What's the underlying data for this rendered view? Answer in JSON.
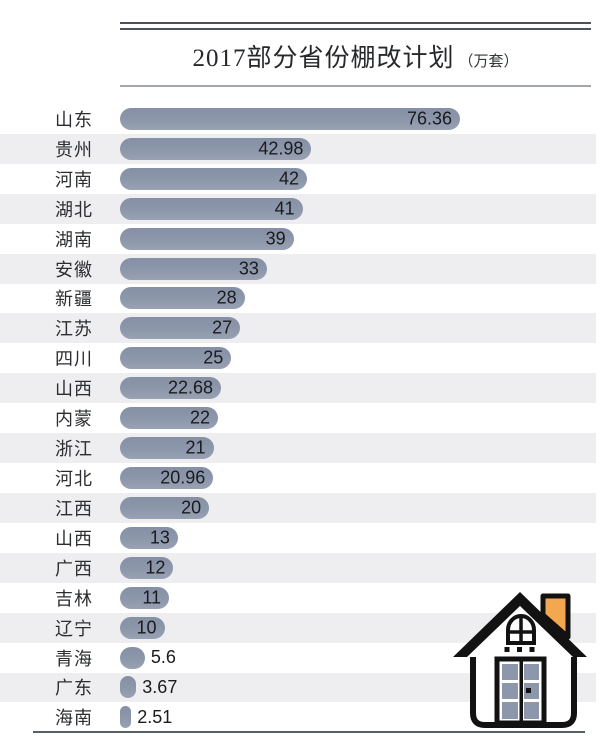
{
  "header": {
    "title": "2017部分省份棚改计划",
    "unit": "（万套）"
  },
  "chart_data": {
    "type": "bar",
    "orientation": "horizontal",
    "title": "2017部分省份棚改计划（万套）",
    "xlabel": "",
    "ylabel": "",
    "xlim": [
      0,
      76.36
    ],
    "grid": false,
    "legend": "none",
    "categories": [
      "山东",
      "贵州",
      "河南",
      "湖北",
      "湖南",
      "安徽",
      "新疆",
      "江苏",
      "四川",
      "山西",
      "内蒙",
      "浙江",
      "河北",
      "江西",
      "山西",
      "广西",
      "吉林",
      "辽宁",
      "青海",
      "广东",
      "海南"
    ],
    "values": [
      76.36,
      42.98,
      42,
      41,
      39,
      33,
      28,
      27,
      25,
      22.68,
      22,
      21,
      20.96,
      20,
      13,
      12,
      11,
      10,
      5.6,
      3.67,
      2.51
    ],
    "value_labels": [
      "76.36",
      "42.98",
      "42",
      "41",
      "39",
      "33",
      "28",
      "27",
      "25",
      "22.68",
      "22",
      "21",
      "20.96",
      "20",
      "13",
      "12",
      "11",
      "10",
      "5.6",
      "3.67",
      "2.51"
    ],
    "bar_color": "#8d97ab",
    "stripe_color": "#eeeef1"
  },
  "decor": {
    "house_icon": "house with orange chimney and slate door panes",
    "chimney_color": "#f3a74f",
    "door_pane_color": "#8d97ab",
    "outline_color": "#121212",
    "rule_dark": "#4d525a",
    "rule_light": "#a2a7ac",
    "rule_bottom": "#5b6067"
  }
}
